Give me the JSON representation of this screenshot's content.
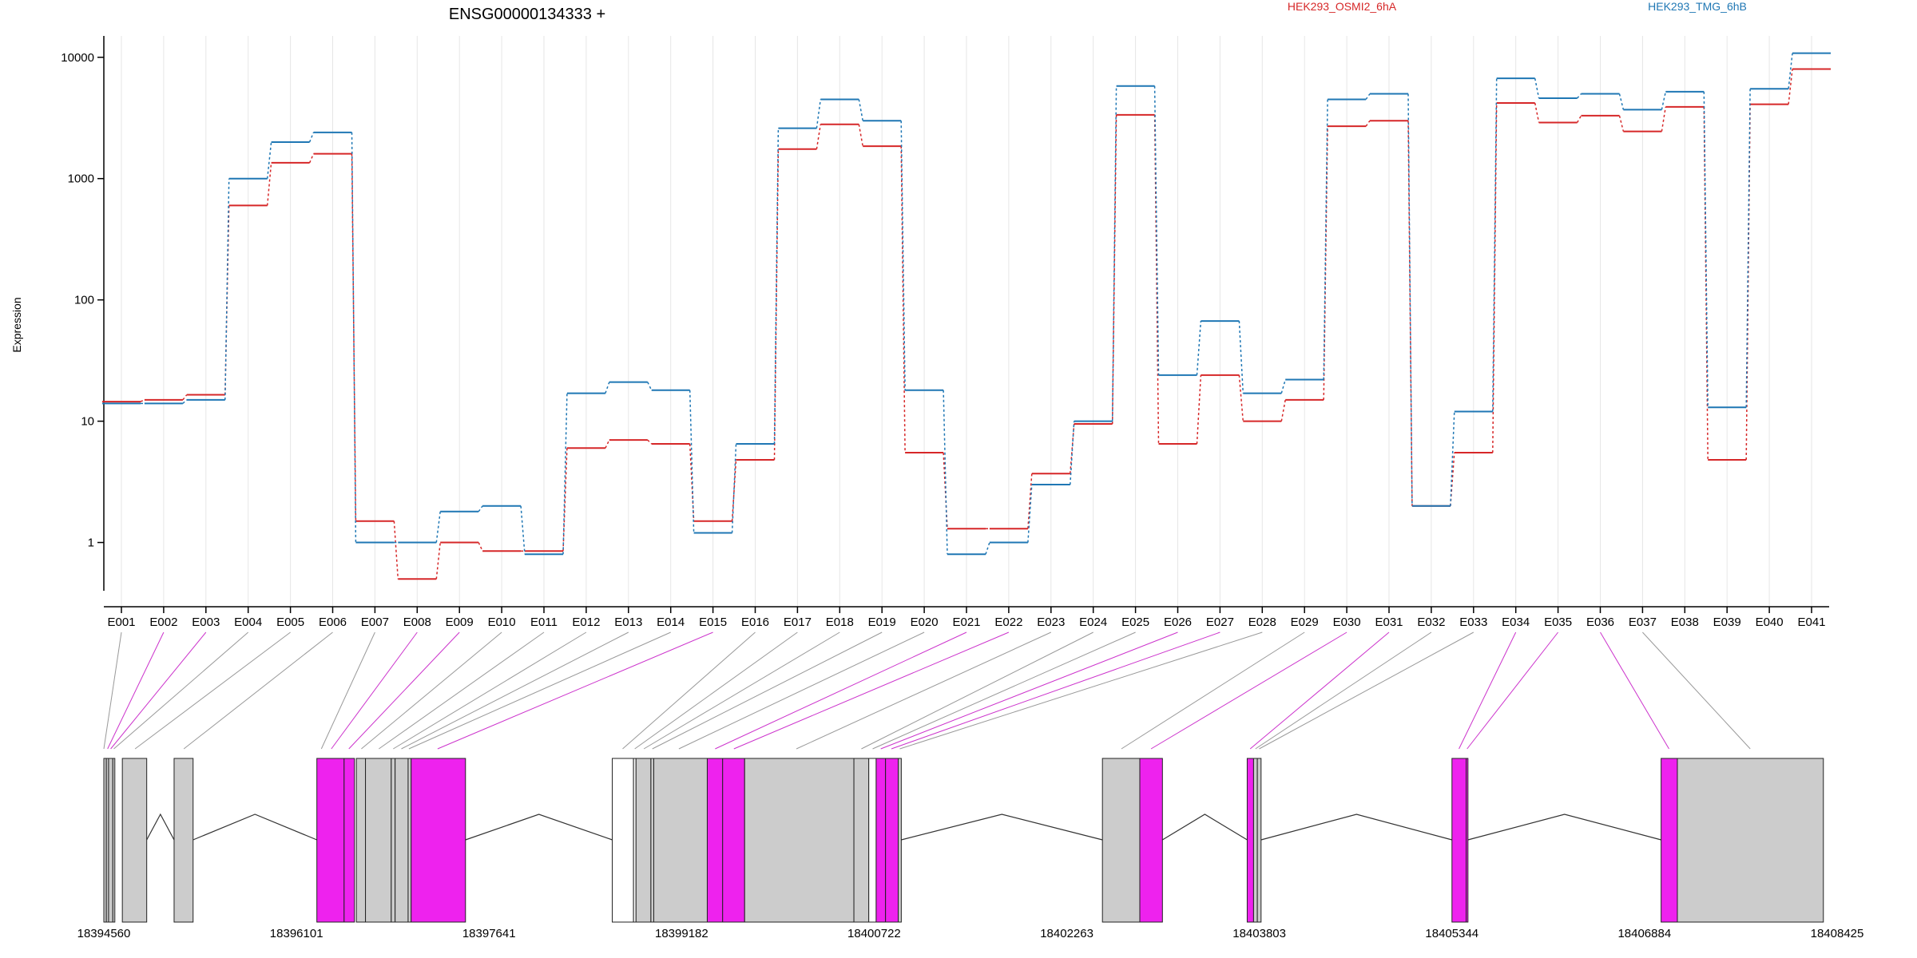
{
  "chart_data": {
    "type": "line",
    "title": "ENSG00000134333 +",
    "ylabel": "Expression",
    "yscale": "log",
    "ylim": [
      0.4,
      15000
    ],
    "yticks": [
      1,
      10,
      100,
      1000,
      10000
    ],
    "ytick_labels": [
      "1",
      "10",
      "100",
      "1000",
      "10000"
    ],
    "grid": true,
    "legend_position": "top",
    "colors": {
      "red": "#d62728",
      "blue": "#1f77b4",
      "exon": "#cccccc",
      "highlight": "#ee22ee"
    },
    "categories": [
      "E001",
      "E002",
      "E003",
      "E004",
      "E005",
      "E006",
      "E007",
      "E008",
      "E009",
      "E010",
      "E011",
      "E012",
      "E013",
      "E014",
      "E015",
      "E016",
      "E017",
      "E018",
      "E019",
      "E020",
      "E021",
      "E022",
      "E023",
      "E024",
      "E025",
      "E026",
      "E027",
      "E028",
      "E029",
      "E030",
      "E031",
      "E032",
      "E033",
      "E034",
      "E035",
      "E036",
      "E037",
      "E038",
      "E039",
      "E040",
      "E041"
    ],
    "series": [
      {
        "name": "HEK293_OSMI2_6hA",
        "color": "#d62728",
        "values": [
          14.5,
          15,
          16.5,
          600,
          1350,
          1600,
          1.5,
          0.5,
          1,
          0.85,
          0.85,
          6,
          7,
          6.5,
          1.5,
          4.8,
          1750,
          2800,
          1850,
          5.5,
          1.3,
          1.3,
          3.7,
          9.5,
          3350,
          6.5,
          24,
          10,
          15,
          2700,
          3000,
          2,
          5.5,
          4200,
          2900,
          3300,
          2450,
          3900,
          4.8,
          4100,
          8000
        ]
      },
      {
        "name": "HEK293_TMG_6hB",
        "color": "#1f77b4",
        "values": [
          14,
          14,
          15,
          1000,
          2000,
          2400,
          1,
          1,
          1.8,
          2,
          0.8,
          17,
          21,
          18,
          1.2,
          6.5,
          2600,
          4500,
          3000,
          18,
          0.8,
          1,
          3,
          10,
          5800,
          24,
          67,
          17,
          22,
          4500,
          5000,
          2,
          12,
          6700,
          4600,
          5000,
          3700,
          5200,
          13,
          5500,
          10800
        ]
      }
    ],
    "genome_axis": {
      "range": [
        18394560,
        18408425
      ],
      "tick_labels": [
        "18394560",
        "18396101",
        "18397641",
        "18399182",
        "18400722",
        "18402263",
        "18403803",
        "18405344",
        "18406884",
        "18408425"
      ],
      "tick_values": [
        18394560,
        18396101,
        18397641,
        18399182,
        18400722,
        18402263,
        18403803,
        18405344,
        18406884,
        18408425
      ]
    },
    "exon_blocks": [
      {
        "start": 18394560,
        "end": 18394580,
        "fill": "grey"
      },
      {
        "start": 18394580,
        "end": 18394598,
        "fill": "grey"
      },
      {
        "start": 18394598,
        "end": 18394632,
        "fill": "grey"
      },
      {
        "start": 18394632,
        "end": 18394648,
        "fill": "grey"
      },
      {
        "start": 18394708,
        "end": 18394903,
        "fill": "grey"
      },
      {
        "start": 18395122,
        "end": 18395274,
        "fill": "grey"
      },
      {
        "start": 18396264,
        "end": 18396482,
        "fill": "highlight"
      },
      {
        "start": 18396482,
        "end": 18396565,
        "fill": "highlight"
      },
      {
        "start": 18396580,
        "end": 18396653,
        "fill": "grey"
      },
      {
        "start": 18396653,
        "end": 18396859,
        "fill": "grey"
      },
      {
        "start": 18396859,
        "end": 18396890,
        "fill": "grey"
      },
      {
        "start": 18396890,
        "end": 18396994,
        "fill": "grey"
      },
      {
        "start": 18396994,
        "end": 18397018,
        "fill": "grey"
      },
      {
        "start": 18397018,
        "end": 18397453,
        "fill": "highlight"
      },
      {
        "start": 18398627,
        "end": 18398797,
        "fill": "white"
      },
      {
        "start": 18398797,
        "end": 18398817,
        "fill": "white"
      },
      {
        "start": 18398817,
        "end": 18398936,
        "fill": "grey"
      },
      {
        "start": 18398936,
        "end": 18398959,
        "fill": "grey"
      },
      {
        "start": 18398959,
        "end": 18399387,
        "fill": "grey"
      },
      {
        "start": 18399387,
        "end": 18399510,
        "fill": "highlight"
      },
      {
        "start": 18399510,
        "end": 18399686,
        "fill": "highlight"
      },
      {
        "start": 18399686,
        "end": 18400560,
        "fill": "grey"
      },
      {
        "start": 18400560,
        "end": 18400679,
        "fill": "grey"
      },
      {
        "start": 18400679,
        "end": 18400738,
        "fill": "white"
      },
      {
        "start": 18400738,
        "end": 18400813,
        "fill": "highlight"
      },
      {
        "start": 18400813,
        "end": 18400915,
        "fill": "highlight"
      },
      {
        "start": 18400915,
        "end": 18400939,
        "fill": "grey"
      },
      {
        "start": 18402548,
        "end": 18402847,
        "fill": "grey"
      },
      {
        "start": 18402847,
        "end": 18403028,
        "fill": "highlight"
      },
      {
        "start": 18403706,
        "end": 18403757,
        "fill": "highlight"
      },
      {
        "start": 18403757,
        "end": 18403787,
        "fill": "grey"
      },
      {
        "start": 18403787,
        "end": 18403817,
        "fill": "grey"
      },
      {
        "start": 18405344,
        "end": 18405458,
        "fill": "highlight"
      },
      {
        "start": 18405458,
        "end": 18405472,
        "fill": "highlight"
      },
      {
        "start": 18407017,
        "end": 18407147,
        "fill": "highlight"
      },
      {
        "start": 18407147,
        "end": 18408315,
        "fill": "grey"
      }
    ],
    "introns": [
      {
        "start": 18394903,
        "end": 18395122,
        "peak": "high"
      },
      {
        "start": 18395274,
        "end": 18396264,
        "peak": "high"
      },
      {
        "start": 18397453,
        "end": 18398627,
        "peak": "high"
      },
      {
        "start": 18400939,
        "end": 18402548,
        "peak": "high"
      },
      {
        "start": 18403028,
        "end": 18403706,
        "peak": "high"
      },
      {
        "start": 18403817,
        "end": 18405344,
        "peak": "high"
      },
      {
        "start": 18405472,
        "end": 18407017,
        "peak": "high"
      }
    ],
    "exon_connectors": [
      {
        "genomic": 18394560,
        "highlight": false
      },
      {
        "genomic": 18394590,
        "highlight": true
      },
      {
        "genomic": 18394615,
        "highlight": true
      },
      {
        "genomic": 18394640,
        "highlight": false
      },
      {
        "genomic": 18394810,
        "highlight": false
      },
      {
        "genomic": 18395200,
        "highlight": false
      },
      {
        "genomic": 18396300,
        "highlight": false
      },
      {
        "genomic": 18396380,
        "highlight": true
      },
      {
        "genomic": 18396520,
        "highlight": true
      },
      {
        "genomic": 18396620,
        "highlight": false
      },
      {
        "genomic": 18396760,
        "highlight": false
      },
      {
        "genomic": 18396875,
        "highlight": false
      },
      {
        "genomic": 18396940,
        "highlight": false
      },
      {
        "genomic": 18397000,
        "highlight": false
      },
      {
        "genomic": 18397230,
        "highlight": true
      },
      {
        "genomic": 18398710,
        "highlight": false
      },
      {
        "genomic": 18398807,
        "highlight": false
      },
      {
        "genomic": 18398880,
        "highlight": false
      },
      {
        "genomic": 18398948,
        "highlight": false
      },
      {
        "genomic": 18399160,
        "highlight": false
      },
      {
        "genomic": 18399450,
        "highlight": true
      },
      {
        "genomic": 18399600,
        "highlight": true
      },
      {
        "genomic": 18400100,
        "highlight": false
      },
      {
        "genomic": 18400620,
        "highlight": false
      },
      {
        "genomic": 18400710,
        "highlight": false
      },
      {
        "genomic": 18400775,
        "highlight": true
      },
      {
        "genomic": 18400860,
        "highlight": true
      },
      {
        "genomic": 18400927,
        "highlight": false
      },
      {
        "genomic": 18402700,
        "highlight": false
      },
      {
        "genomic": 18402937,
        "highlight": true
      },
      {
        "genomic": 18403730,
        "highlight": true
      },
      {
        "genomic": 18403772,
        "highlight": false
      },
      {
        "genomic": 18403802,
        "highlight": false
      },
      {
        "genomic": 18405400,
        "highlight": true
      },
      {
        "genomic": 18405465,
        "highlight": true
      },
      {
        "genomic": 18407080,
        "highlight": true
      },
      {
        "genomic": 18407730,
        "highlight": false
      }
    ]
  }
}
